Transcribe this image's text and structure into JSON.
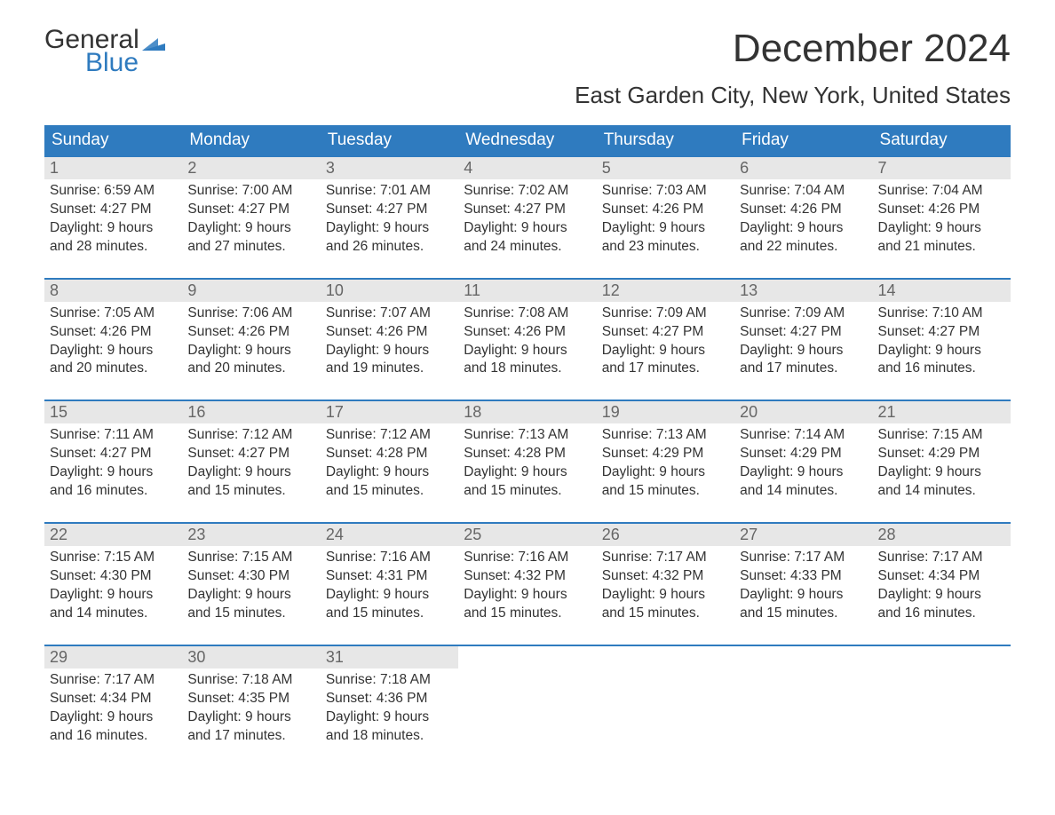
{
  "logo": {
    "word1": "General",
    "word2": "Blue",
    "flag_color": "#2f7bbf"
  },
  "title": "December 2024",
  "location": "East Garden City, New York, United States",
  "colors": {
    "header_bg": "#2f7bbf",
    "header_text": "#ffffff",
    "daynum_bg": "#e7e7e7",
    "daynum_text": "#666666",
    "body_text": "#333333",
    "week_border": "#2f7bbf",
    "page_bg": "#ffffff"
  },
  "typography": {
    "title_fontsize": 44,
    "location_fontsize": 26,
    "header_fontsize": 19,
    "daynum_fontsize": 18,
    "body_fontsize": 15.5,
    "font_family": "Arial"
  },
  "day_headers": [
    "Sunday",
    "Monday",
    "Tuesday",
    "Wednesday",
    "Thursday",
    "Friday",
    "Saturday"
  ],
  "weeks": [
    [
      {
        "n": "1",
        "sunrise": "Sunrise: 6:59 AM",
        "sunset": "Sunset: 4:27 PM",
        "d1": "Daylight: 9 hours",
        "d2": "and 28 minutes."
      },
      {
        "n": "2",
        "sunrise": "Sunrise: 7:00 AM",
        "sunset": "Sunset: 4:27 PM",
        "d1": "Daylight: 9 hours",
        "d2": "and 27 minutes."
      },
      {
        "n": "3",
        "sunrise": "Sunrise: 7:01 AM",
        "sunset": "Sunset: 4:27 PM",
        "d1": "Daylight: 9 hours",
        "d2": "and 26 minutes."
      },
      {
        "n": "4",
        "sunrise": "Sunrise: 7:02 AM",
        "sunset": "Sunset: 4:27 PM",
        "d1": "Daylight: 9 hours",
        "d2": "and 24 minutes."
      },
      {
        "n": "5",
        "sunrise": "Sunrise: 7:03 AM",
        "sunset": "Sunset: 4:26 PM",
        "d1": "Daylight: 9 hours",
        "d2": "and 23 minutes."
      },
      {
        "n": "6",
        "sunrise": "Sunrise: 7:04 AM",
        "sunset": "Sunset: 4:26 PM",
        "d1": "Daylight: 9 hours",
        "d2": "and 22 minutes."
      },
      {
        "n": "7",
        "sunrise": "Sunrise: 7:04 AM",
        "sunset": "Sunset: 4:26 PM",
        "d1": "Daylight: 9 hours",
        "d2": "and 21 minutes."
      }
    ],
    [
      {
        "n": "8",
        "sunrise": "Sunrise: 7:05 AM",
        "sunset": "Sunset: 4:26 PM",
        "d1": "Daylight: 9 hours",
        "d2": "and 20 minutes."
      },
      {
        "n": "9",
        "sunrise": "Sunrise: 7:06 AM",
        "sunset": "Sunset: 4:26 PM",
        "d1": "Daylight: 9 hours",
        "d2": "and 20 minutes."
      },
      {
        "n": "10",
        "sunrise": "Sunrise: 7:07 AM",
        "sunset": "Sunset: 4:26 PM",
        "d1": "Daylight: 9 hours",
        "d2": "and 19 minutes."
      },
      {
        "n": "11",
        "sunrise": "Sunrise: 7:08 AM",
        "sunset": "Sunset: 4:26 PM",
        "d1": "Daylight: 9 hours",
        "d2": "and 18 minutes."
      },
      {
        "n": "12",
        "sunrise": "Sunrise: 7:09 AM",
        "sunset": "Sunset: 4:27 PM",
        "d1": "Daylight: 9 hours",
        "d2": "and 17 minutes."
      },
      {
        "n": "13",
        "sunrise": "Sunrise: 7:09 AM",
        "sunset": "Sunset: 4:27 PM",
        "d1": "Daylight: 9 hours",
        "d2": "and 17 minutes."
      },
      {
        "n": "14",
        "sunrise": "Sunrise: 7:10 AM",
        "sunset": "Sunset: 4:27 PM",
        "d1": "Daylight: 9 hours",
        "d2": "and 16 minutes."
      }
    ],
    [
      {
        "n": "15",
        "sunrise": "Sunrise: 7:11 AM",
        "sunset": "Sunset: 4:27 PM",
        "d1": "Daylight: 9 hours",
        "d2": "and 16 minutes."
      },
      {
        "n": "16",
        "sunrise": "Sunrise: 7:12 AM",
        "sunset": "Sunset: 4:27 PM",
        "d1": "Daylight: 9 hours",
        "d2": "and 15 minutes."
      },
      {
        "n": "17",
        "sunrise": "Sunrise: 7:12 AM",
        "sunset": "Sunset: 4:28 PM",
        "d1": "Daylight: 9 hours",
        "d2": "and 15 minutes."
      },
      {
        "n": "18",
        "sunrise": "Sunrise: 7:13 AM",
        "sunset": "Sunset: 4:28 PM",
        "d1": "Daylight: 9 hours",
        "d2": "and 15 minutes."
      },
      {
        "n": "19",
        "sunrise": "Sunrise: 7:13 AM",
        "sunset": "Sunset: 4:29 PM",
        "d1": "Daylight: 9 hours",
        "d2": "and 15 minutes."
      },
      {
        "n": "20",
        "sunrise": "Sunrise: 7:14 AM",
        "sunset": "Sunset: 4:29 PM",
        "d1": "Daylight: 9 hours",
        "d2": "and 14 minutes."
      },
      {
        "n": "21",
        "sunrise": "Sunrise: 7:15 AM",
        "sunset": "Sunset: 4:29 PM",
        "d1": "Daylight: 9 hours",
        "d2": "and 14 minutes."
      }
    ],
    [
      {
        "n": "22",
        "sunrise": "Sunrise: 7:15 AM",
        "sunset": "Sunset: 4:30 PM",
        "d1": "Daylight: 9 hours",
        "d2": "and 14 minutes."
      },
      {
        "n": "23",
        "sunrise": "Sunrise: 7:15 AM",
        "sunset": "Sunset: 4:30 PM",
        "d1": "Daylight: 9 hours",
        "d2": "and 15 minutes."
      },
      {
        "n": "24",
        "sunrise": "Sunrise: 7:16 AM",
        "sunset": "Sunset: 4:31 PM",
        "d1": "Daylight: 9 hours",
        "d2": "and 15 minutes."
      },
      {
        "n": "25",
        "sunrise": "Sunrise: 7:16 AM",
        "sunset": "Sunset: 4:32 PM",
        "d1": "Daylight: 9 hours",
        "d2": "and 15 minutes."
      },
      {
        "n": "26",
        "sunrise": "Sunrise: 7:17 AM",
        "sunset": "Sunset: 4:32 PM",
        "d1": "Daylight: 9 hours",
        "d2": "and 15 minutes."
      },
      {
        "n": "27",
        "sunrise": "Sunrise: 7:17 AM",
        "sunset": "Sunset: 4:33 PM",
        "d1": "Daylight: 9 hours",
        "d2": "and 15 minutes."
      },
      {
        "n": "28",
        "sunrise": "Sunrise: 7:17 AM",
        "sunset": "Sunset: 4:34 PM",
        "d1": "Daylight: 9 hours",
        "d2": "and 16 minutes."
      }
    ],
    [
      {
        "n": "29",
        "sunrise": "Sunrise: 7:17 AM",
        "sunset": "Sunset: 4:34 PM",
        "d1": "Daylight: 9 hours",
        "d2": "and 16 minutes."
      },
      {
        "n": "30",
        "sunrise": "Sunrise: 7:18 AM",
        "sunset": "Sunset: 4:35 PM",
        "d1": "Daylight: 9 hours",
        "d2": "and 17 minutes."
      },
      {
        "n": "31",
        "sunrise": "Sunrise: 7:18 AM",
        "sunset": "Sunset: 4:36 PM",
        "d1": "Daylight: 9 hours",
        "d2": "and 18 minutes."
      },
      null,
      null,
      null,
      null
    ]
  ]
}
